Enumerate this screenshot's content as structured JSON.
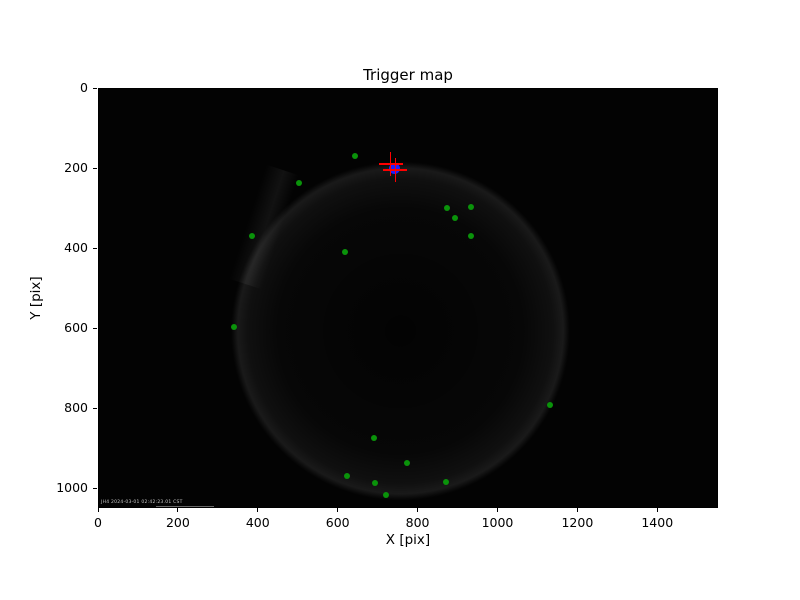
{
  "figure": {
    "kind": "matplotlib-figure",
    "background_color": "#ffffff",
    "image_background_color": "#030303"
  },
  "camera_overlay": {
    "text": "JH4 2024-03-01 02:42:23.01 CST"
  },
  "colors": {
    "trigger_marker": "#0a930a",
    "crosshair": "#ff0000",
    "centroid": "#1f1fff",
    "ring_glow": "#3c3c3c",
    "axis_text": "#000000"
  },
  "chart_data": {
    "type": "scatter",
    "title": "Trigger map",
    "xlabel": "X [pix]",
    "ylabel": "Y [pix]",
    "xlim": [
      0,
      1552
    ],
    "ylim": [
      1050,
      0
    ],
    "y_axis_inverted": true,
    "x_ticks": [
      0,
      200,
      400,
      600,
      800,
      1000,
      1200,
      1400
    ],
    "y_ticks": [
      0,
      200,
      400,
      600,
      800,
      1000
    ],
    "grid": false,
    "legend": "none",
    "background_image": "dark all-sky camera frame with faint circular field-of-view ring",
    "ring": {
      "cx": 755,
      "cy": 605,
      "r": 425
    },
    "series": [
      {
        "name": "trigger-pixels",
        "marker": "circle",
        "color": "#0a930a",
        "size": 6,
        "points": [
          [
            640,
            168
          ],
          [
            500,
            236
          ],
          [
            870,
            298
          ],
          [
            930,
            295
          ],
          [
            892,
            322
          ],
          [
            930,
            368
          ],
          [
            382,
            368
          ],
          [
            615,
            408
          ],
          [
            338,
            595
          ],
          [
            1128,
            790
          ],
          [
            688,
            872
          ],
          [
            772,
            935
          ],
          [
            622,
            968
          ],
          [
            692,
            985
          ],
          [
            718,
            1015
          ],
          [
            868,
            982
          ]
        ]
      },
      {
        "name": "centroid",
        "marker": "circle",
        "color": "#1f1fff",
        "size": 11,
        "points": [
          [
            740,
            198
          ]
        ]
      },
      {
        "name": "crosshair",
        "marker": "plus",
        "color": "#ff0000",
        "size": 24,
        "thickness": 1.6,
        "points": [
          [
            730,
            187
          ],
          [
            742,
            202
          ]
        ]
      }
    ]
  }
}
